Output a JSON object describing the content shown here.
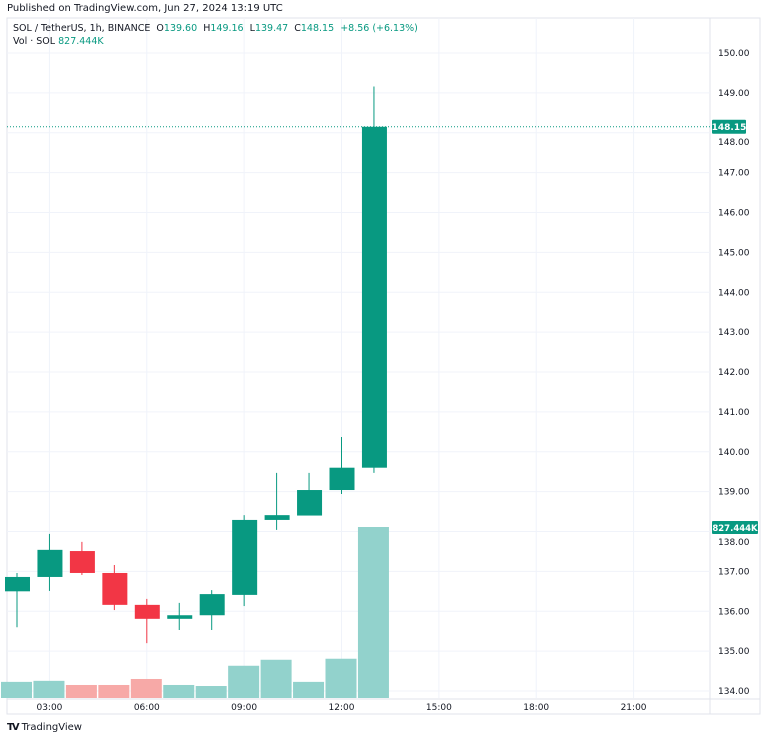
{
  "published": "Published on TradingView.com, Jun 27, 2024 13:19 UTC",
  "legend": {
    "symbol": "SOL / TetherUS, 1h, BINANCE",
    "o_label": "O",
    "o": "139.60",
    "h_label": "H",
    "h": "149.16",
    "l_label": "L",
    "l": "139.47",
    "c_label": "C",
    "c": "148.15",
    "change": "+8.56 (+6.13%)",
    "vol_label": "Vol · SOL",
    "vol": "827.444K"
  },
  "brand": "TradingView",
  "colors": {
    "up": "#089981",
    "down": "#f23645",
    "vol_up": "#92d2cc",
    "vol_down": "#f7a9a7"
  },
  "chart_data": {
    "type": "candlestick",
    "title": "SOL / TetherUS, 1h, BINANCE",
    "x": [
      "02:00",
      "03:00",
      "04:00",
      "05:00",
      "06:00",
      "07:00",
      "08:00",
      "09:00",
      "10:00",
      "11:00",
      "12:00",
      "13:00"
    ],
    "open": [
      136.5,
      136.86,
      137.51,
      136.96,
      136.16,
      135.81,
      135.9,
      136.41,
      138.29,
      138.4,
      139.04,
      139.6
    ],
    "high": [
      136.96,
      137.94,
      137.74,
      137.16,
      136.31,
      136.21,
      136.53,
      138.41,
      139.47,
      139.47,
      140.37,
      149.16
    ],
    "low": [
      135.6,
      136.51,
      136.91,
      136.03,
      135.2,
      135.53,
      135.53,
      136.13,
      138.04,
      138.51,
      138.94,
      139.47
    ],
    "close": [
      136.86,
      137.54,
      136.96,
      136.16,
      135.81,
      135.9,
      136.43,
      138.29,
      138.41,
      139.04,
      139.6,
      148.15
    ],
    "volume_k": [
      78,
      83,
      63,
      63,
      92,
      63,
      58,
      156,
      185,
      78,
      190,
      827.444
    ],
    "x_ticks": [
      "03:00",
      "06:00",
      "09:00",
      "12:00",
      "15:00",
      "18:00",
      "21:00"
    ],
    "y_ticks": [
      "150.00",
      "149.00",
      "148.00",
      "147.00",
      "146.00",
      "145.00",
      "144.00",
      "143.00",
      "142.00",
      "141.00",
      "140.00",
      "139.00",
      "138.00",
      "137.00",
      "136.00",
      "135.00",
      "134.00"
    ],
    "ylim": [
      134,
      150
    ],
    "last_price_label": "148.15",
    "last_volume_label": "827.444K",
    "grid": true
  }
}
